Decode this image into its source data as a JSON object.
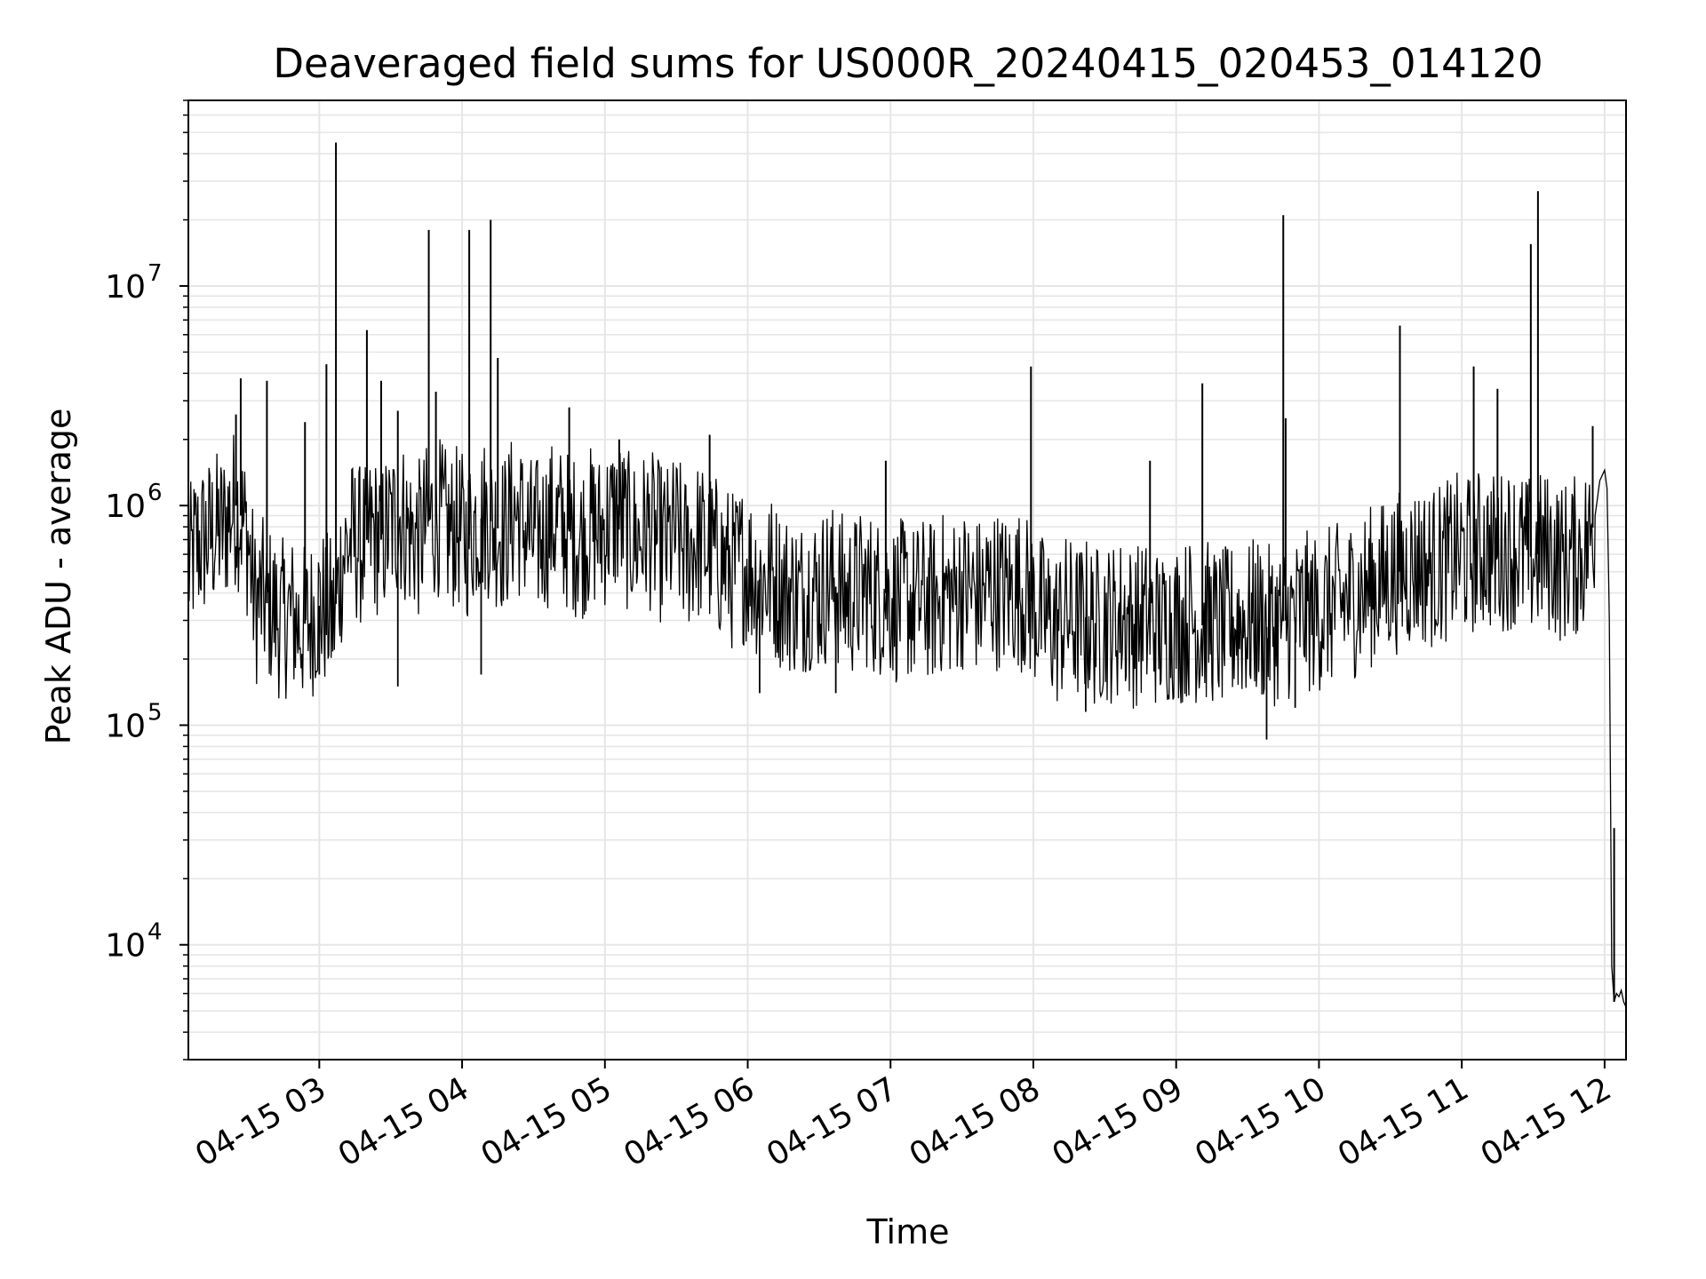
{
  "chart_data": {
    "type": "line",
    "title": "Deaveraged field sums for US000R_20240415_020453_014120",
    "xlabel": "Time",
    "ylabel": "Peak ADU - average",
    "x_scale": "time",
    "y_scale": "log",
    "xlim": [
      "04-15 02:05",
      "04-15 12:09"
    ],
    "ylim": [
      3000,
      70000000
    ],
    "grid": true,
    "line_color": "#000000",
    "grid_color": "#e6e6e6",
    "x_ticks": [
      {
        "label": "04-15 03",
        "value": "04-15 03:00"
      },
      {
        "label": "04-15 04",
        "value": "04-15 04:00"
      },
      {
        "label": "04-15 05",
        "value": "04-15 05:00"
      },
      {
        "label": "04-15 06",
        "value": "04-15 06:00"
      },
      {
        "label": "04-15 07",
        "value": "04-15 07:00"
      },
      {
        "label": "04-15 08",
        "value": "04-15 08:00"
      },
      {
        "label": "04-15 09",
        "value": "04-15 09:00"
      },
      {
        "label": "04-15 10",
        "value": "04-15 10:00"
      },
      {
        "label": "04-15 11",
        "value": "04-15 11:00"
      },
      {
        "label": "04-15 12",
        "value": "04-15 12:00"
      }
    ],
    "y_ticks": [
      {
        "base": "10",
        "exp": "4",
        "value": 10000
      },
      {
        "base": "10",
        "exp": "5",
        "value": 100000
      },
      {
        "base": "10",
        "exp": "6",
        "value": 1000000
      },
      {
        "base": "10",
        "exp": "7",
        "value": 10000000
      }
    ],
    "series": [
      {
        "x": [
          "04-15 02:05",
          "04-15 02:08",
          "04-15 02:12",
          "04-15 02:16",
          "04-15 02:20",
          "04-15 02:23",
          "04-15 02:25",
          "04-15 02:27",
          "04-15 02:30",
          "04-15 02:33",
          "04-15 02:36",
          "04-15 02:40",
          "04-15 02:44",
          "04-15 02:48",
          "04-15 02:52",
          "04-15 02:56",
          "04-15 03:00",
          "04-15 03:03",
          "04-15 03:06",
          "04-15 03:10",
          "04-15 03:14",
          "04-15 03:18",
          "04-15 03:22",
          "04-15 03:26",
          "04-15 03:30",
          "04-15 03:34",
          "04-15 03:38",
          "04-15 03:42",
          "04-15 03:46",
          "04-15 03:50",
          "04-15 03:54",
          "04-15 03:58",
          "04-15 04:02",
          "04-15 04:06",
          "04-15 04:10",
          "04-15 04:14",
          "04-15 04:18",
          "04-15 04:22",
          "04-15 04:26",
          "04-15 04:30",
          "04-15 04:34",
          "04-15 04:38",
          "04-15 04:42",
          "04-15 04:46",
          "04-15 04:50",
          "04-15 04:54",
          "04-15 04:58",
          "04-15 05:02",
          "04-15 05:06",
          "04-15 05:10",
          "04-15 05:14",
          "04-15 05:18",
          "04-15 05:22",
          "04-15 05:26",
          "04-15 05:30",
          "04-15 05:34",
          "04-15 05:38",
          "04-15 05:42",
          "04-15 05:46",
          "04-15 05:50",
          "04-15 05:54",
          "04-15 05:58",
          "04-15 06:02",
          "04-15 06:06",
          "04-15 06:10",
          "04-15 06:14",
          "04-15 06:18",
          "04-15 06:22",
          "04-15 06:26",
          "04-15 06:30",
          "04-15 06:34",
          "04-15 06:38",
          "04-15 06:42",
          "04-15 06:46",
          "04-15 06:50",
          "04-15 06:54",
          "04-15 06:58",
          "04-15 07:02",
          "04-15 07:06",
          "04-15 07:10",
          "04-15 07:14",
          "04-15 07:18",
          "04-15 07:22",
          "04-15 07:26",
          "04-15 07:30",
          "04-15 07:34",
          "04-15 07:38",
          "04-15 07:42",
          "04-15 07:46",
          "04-15 07:50",
          "04-15 07:54",
          "04-15 07:58",
          "04-15 08:02",
          "04-15 08:06",
          "04-15 08:10",
          "04-15 08:14",
          "04-15 08:18",
          "04-15 08:22",
          "04-15 08:26",
          "04-15 08:30",
          "04-15 08:34",
          "04-15 08:38",
          "04-15 08:42",
          "04-15 08:46",
          "04-15 08:50",
          "04-15 08:54",
          "04-15 08:58",
          "04-15 09:02",
          "04-15 09:06",
          "04-15 09:10",
          "04-15 09:14",
          "04-15 09:18",
          "04-15 09:22",
          "04-15 09:26",
          "04-15 09:30",
          "04-15 09:34",
          "04-15 09:38",
          "04-15 09:42",
          "04-15 09:46",
          "04-15 09:50",
          "04-15 09:54",
          "04-15 09:58",
          "04-15 10:02",
          "04-15 10:06",
          "04-15 10:10",
          "04-15 10:14",
          "04-15 10:18",
          "04-15 10:22",
          "04-15 10:26",
          "04-15 10:30",
          "04-15 10:34",
          "04-15 10:38",
          "04-15 10:42",
          "04-15 10:46",
          "04-15 10:50",
          "04-15 10:54",
          "04-15 10:58",
          "04-15 11:02",
          "04-15 11:06",
          "04-15 11:10",
          "04-15 11:14",
          "04-15 11:18",
          "04-15 11:22",
          "04-15 11:26",
          "04-15 11:30",
          "04-15 11:34",
          "04-15 11:38",
          "04-15 11:42",
          "04-15 11:46",
          "04-15 11:50",
          "04-15 11:54",
          "04-15 11:56",
          "04-15 11:58",
          "04-15 12:00",
          "04-15 12:01",
          "04-15 12:02",
          "04-15 12:03",
          "04-15 12:04",
          "04-15 12:05",
          "04-15 12:06",
          "04-15 12:07",
          "04-15 12:08",
          "04-15 12:09"
        ],
        "y": [
          500000,
          650000,
          700000,
          750000,
          800000,
          950000,
          1000000,
          900000,
          700000,
          350000,
          380000,
          340000,
          300000,
          320000,
          280000,
          300000,
          350000,
          330000,
          300000,
          600000,
          700000,
          650000,
          750000,
          700000,
          800000,
          900000,
          750000,
          700000,
          850000,
          900000,
          750000,
          800000,
          700000,
          850000,
          900000,
          800000,
          750000,
          950000,
          800000,
          700000,
          750000,
          850000,
          800000,
          750000,
          700000,
          800000,
          750000,
          850000,
          900000,
          750000,
          700000,
          800000,
          700000,
          650000,
          750000,
          600000,
          700000,
          650000,
          600000,
          550000,
          500000,
          550000,
          500000,
          450000,
          480000,
          420000,
          400000,
          380000,
          420000,
          400000,
          450000,
          420000,
          380000,
          400000,
          420000,
          380000,
          400000,
          360000,
          380000,
          350000,
          380000,
          360000,
          400000,
          380000,
          420000,
          400000,
          380000,
          430000,
          410000,
          400000,
          420000,
          380000,
          330000,
          300000,
          280000,
          320000,
          290000,
          310000,
          280000,
          300000,
          290000,
          320000,
          280000,
          300000,
          290000,
          270000,
          300000,
          290000,
          310000,
          280000,
          300000,
          270000,
          280000,
          300000,
          290000,
          310000,
          280000,
          290000,
          300000,
          310000,
          330000,
          320000,
          340000,
          350000,
          360000,
          380000,
          400000,
          430000,
          450000,
          480000,
          500000,
          520000,
          550000,
          520000,
          540000,
          560000,
          600000,
          580000,
          620000,
          650000,
          600000,
          630000,
          650000,
          600000,
          580000,
          620000,
          600000,
          550000,
          580000,
          600000,
          700000,
          900000,
          1300000,
          1450000,
          1200000,
          300000,
          8000,
          5500,
          6000,
          5800,
          6200,
          5500,
          5200
        ],
        "spikes": [
          {
            "x": "04-15 02:25",
            "y": 2600000
          },
          {
            "x": "04-15 02:27",
            "y": 3800000
          },
          {
            "x": "04-15 02:38",
            "y": 3700000
          },
          {
            "x": "04-15 02:54",
            "y": 2400000
          },
          {
            "x": "04-15 03:03",
            "y": 4400000
          },
          {
            "x": "04-15 03:07",
            "y": 45000000
          },
          {
            "x": "04-15 03:20",
            "y": 6300000
          },
          {
            "x": "04-15 03:26",
            "y": 3700000
          },
          {
            "x": "04-15 03:33",
            "y": 2700000
          },
          {
            "x": "04-15 03:46",
            "y": 18000000
          },
          {
            "x": "04-15 03:49",
            "y": 3300000
          },
          {
            "x": "04-15 04:03",
            "y": 18000000
          },
          {
            "x": "04-15 04:12",
            "y": 20000000
          },
          {
            "x": "04-15 04:15",
            "y": 4700000
          },
          {
            "x": "04-15 04:45",
            "y": 2800000
          },
          {
            "x": "04-15 05:06",
            "y": 2000000
          },
          {
            "x": "04-15 05:44",
            "y": 2100000
          },
          {
            "x": "04-15 06:58",
            "y": 1600000
          },
          {
            "x": "04-15 07:59",
            "y": 4300000
          },
          {
            "x": "04-15 08:49",
            "y": 1600000
          },
          {
            "x": "04-15 09:11",
            "y": 3600000
          },
          {
            "x": "04-15 09:45",
            "y": 21000000
          },
          {
            "x": "04-15 09:46",
            "y": 2500000
          },
          {
            "x": "04-15 10:34",
            "y": 6600000
          },
          {
            "x": "04-15 11:05",
            "y": 4300000
          },
          {
            "x": "04-15 11:15",
            "y": 3400000
          },
          {
            "x": "04-15 11:29",
            "y": 15500000
          },
          {
            "x": "04-15 11:32",
            "y": 27000000
          },
          {
            "x": "04-15 11:55",
            "y": 2300000
          },
          {
            "x": "04-15 12:04",
            "y": 34000
          }
        ],
        "dips": [
          {
            "x": "04-15 03:00",
            "y": 170000
          },
          {
            "x": "04-15 03:33",
            "y": 150000
          },
          {
            "x": "04-15 04:08",
            "y": 170000
          },
          {
            "x": "04-15 06:05",
            "y": 140000
          },
          {
            "x": "04-15 06:37",
            "y": 140000
          },
          {
            "x": "04-15 08:22",
            "y": 115000
          },
          {
            "x": "04-15 09:38",
            "y": 86000
          },
          {
            "x": "04-15 09:50",
            "y": 120000
          }
        ]
      }
    ]
  }
}
